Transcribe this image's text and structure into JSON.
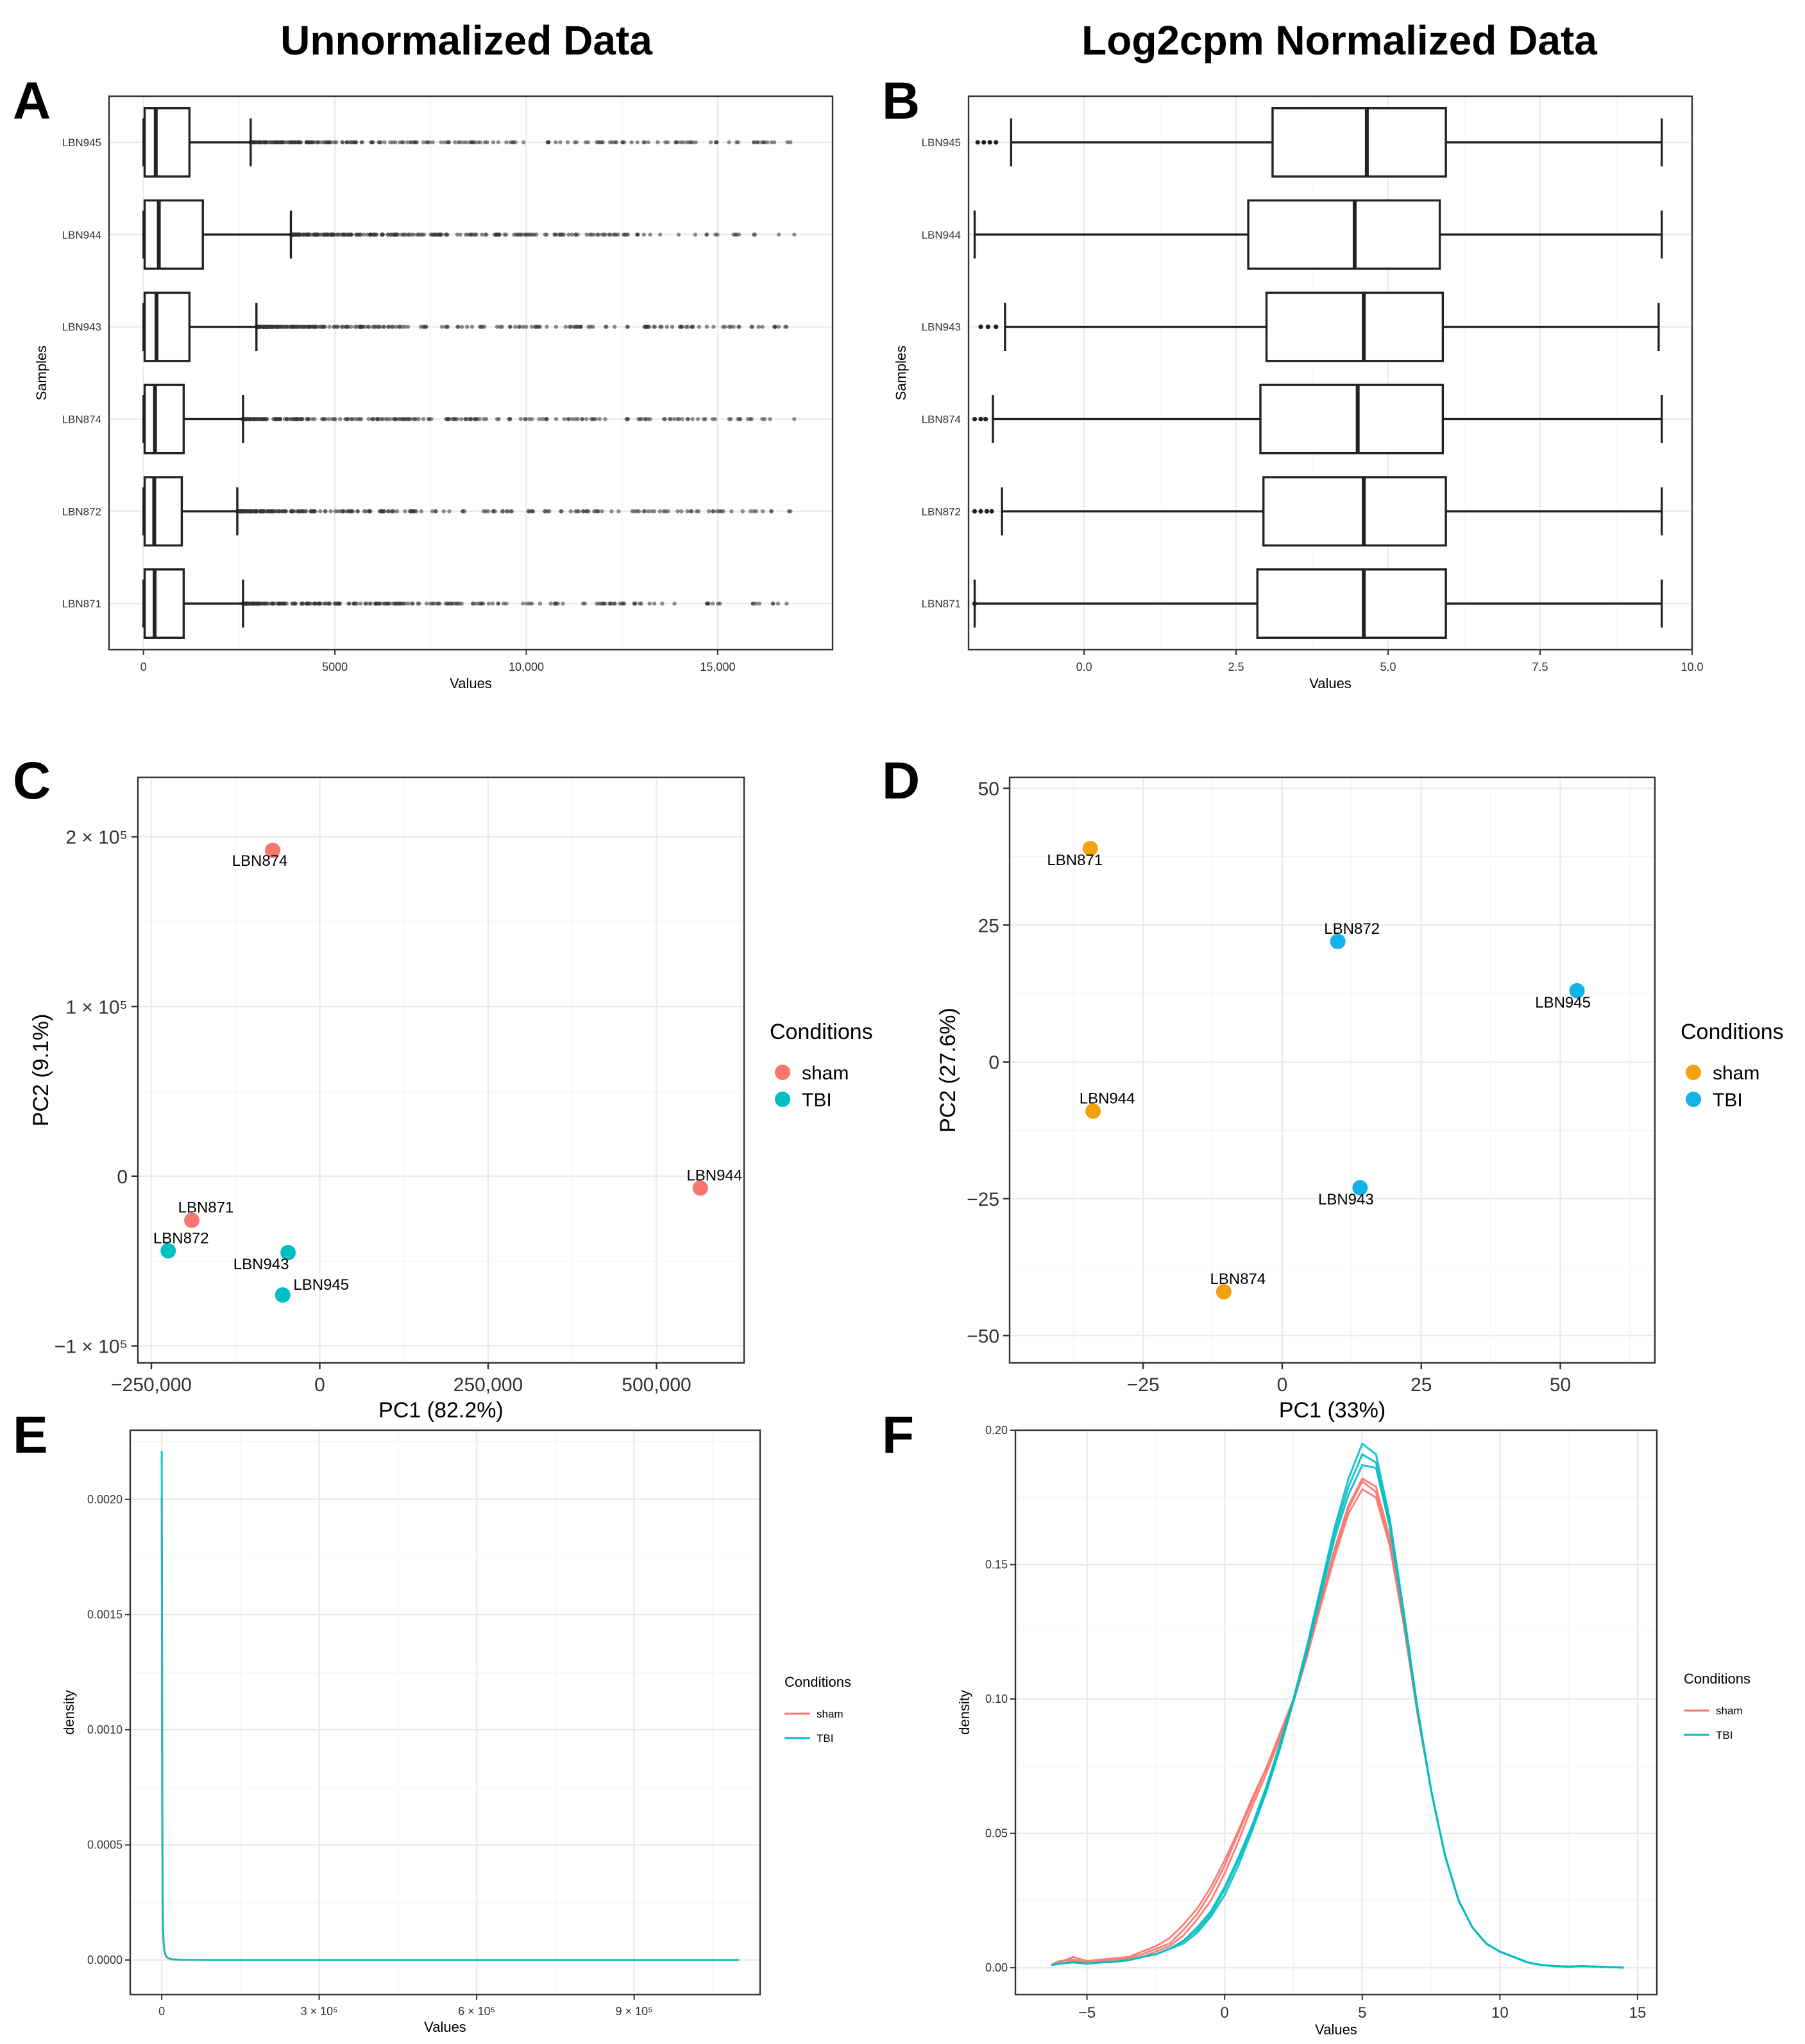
{
  "column_titles": [
    "Unnormalized Data",
    "Log2cpm Normalized Data"
  ],
  "chart_data": [
    {
      "panel": "A",
      "type": "boxplot",
      "orientation": "horizontal",
      "xlabel": "Values",
      "ylabel": "Samples",
      "xlim": [
        -900,
        18000
      ],
      "xticks": [
        0,
        5000,
        10000,
        15000
      ],
      "xtick_labels": [
        "0",
        "5000",
        "10,000",
        "15,000"
      ],
      "grid": true,
      "samples": [
        "LBN945",
        "LBN944",
        "LBN943",
        "LBN874",
        "LBN872",
        "LBN871"
      ],
      "boxes": [
        {
          "sample": "LBN945",
          "q1": 30,
          "median": 320,
          "q3": 1200,
          "whisker_low": 0,
          "whisker_high": 2800,
          "outlier_max": 16900
        },
        {
          "sample": "LBN944",
          "q1": 30,
          "median": 400,
          "q3": 1550,
          "whisker_low": 0,
          "whisker_high": 3850,
          "outlier_max": 17000
        },
        {
          "sample": "LBN943",
          "q1": 30,
          "median": 340,
          "q3": 1200,
          "whisker_low": 0,
          "whisker_high": 2950,
          "outlier_max": 16800
        },
        {
          "sample": "LBN874",
          "q1": 30,
          "median": 300,
          "q3": 1050,
          "whisker_low": 0,
          "whisker_high": 2600,
          "outlier_max": 17000
        },
        {
          "sample": "LBN872",
          "q1": 30,
          "median": 280,
          "q3": 1000,
          "whisker_low": 0,
          "whisker_high": 2450,
          "outlier_max": 16900
        },
        {
          "sample": "LBN871",
          "q1": 30,
          "median": 290,
          "q3": 1050,
          "whisker_low": 0,
          "whisker_high": 2600,
          "outlier_max": 16800
        }
      ]
    },
    {
      "panel": "B",
      "type": "boxplot",
      "orientation": "horizontal",
      "xlabel": "Values",
      "ylabel": "Samples",
      "xlim": [
        -1.9,
        10.0
      ],
      "xticks": [
        0.0,
        2.5,
        5.0,
        7.5,
        10.0
      ],
      "xtick_labels": [
        "0.0",
        "2.5",
        "5.0",
        "7.5",
        "10.0"
      ],
      "grid": true,
      "samples": [
        "LBN945",
        "LBN944",
        "LBN943",
        "LBN874",
        "LBN872",
        "LBN871"
      ],
      "boxes": [
        {
          "sample": "LBN945",
          "q1": 3.1,
          "median": 4.65,
          "q3": 5.95,
          "whisker_low": -1.2,
          "whisker_high": 9.5,
          "outliers": [
            -1.75,
            -1.65,
            -1.55,
            -1.45
          ]
        },
        {
          "sample": "LBN944",
          "q1": 2.7,
          "median": 4.45,
          "q3": 5.85,
          "whisker_low": -1.8,
          "whisker_high": 9.5,
          "outliers": []
        },
        {
          "sample": "LBN943",
          "q1": 3.0,
          "median": 4.6,
          "q3": 5.9,
          "whisker_low": -1.3,
          "whisker_high": 9.45,
          "outliers": [
            -1.7,
            -1.58,
            -1.45
          ]
        },
        {
          "sample": "LBN874",
          "q1": 2.9,
          "median": 4.5,
          "q3": 5.9,
          "whisker_low": -1.5,
          "whisker_high": 9.5,
          "outliers": [
            -1.8,
            -1.7,
            -1.62
          ]
        },
        {
          "sample": "LBN872",
          "q1": 2.95,
          "median": 4.6,
          "q3": 5.95,
          "whisker_low": -1.35,
          "whisker_high": 9.5,
          "outliers": [
            -1.8,
            -1.7,
            -1.6,
            -1.52
          ]
        },
        {
          "sample": "LBN871",
          "q1": 2.85,
          "median": 4.6,
          "q3": 5.95,
          "whisker_low": -1.8,
          "whisker_high": 9.5,
          "outliers": [
            -1.8
          ]
        }
      ]
    },
    {
      "panel": "C",
      "type": "scatter",
      "xlabel": "PC1 (82.2%)",
      "ylabel": "PC2 (9.1%)",
      "xlim": [
        -270000,
        630000
      ],
      "ylim": [
        -110000,
        235000
      ],
      "xticks": [
        -250000,
        0,
        250000,
        500000
      ],
      "xtick_labels": [
        "−250,000",
        "0",
        "250,000",
        "500,000"
      ],
      "yticks": [
        -100000,
        0,
        100000,
        200000
      ],
      "ytick_labels": [
        "−1 × 10⁵",
        "0",
        "1 × 10⁵",
        "2 × 10⁵"
      ],
      "legend": {
        "title": "Conditions",
        "entries": [
          "sham",
          "TBI"
        ],
        "colors": [
          "#F8766D",
          "#00BFC4"
        ],
        "position": "right"
      },
      "points": [
        {
          "label": "LBN874",
          "group": "sham",
          "x": -70000,
          "y": 192000
        },
        {
          "label": "LBN944",
          "group": "sham",
          "x": 565000,
          "y": -7000
        },
        {
          "label": "LBN871",
          "group": "sham",
          "x": -190000,
          "y": -26000
        },
        {
          "label": "LBN872",
          "group": "TBI",
          "x": -225000,
          "y": -44000
        },
        {
          "label": "LBN943",
          "group": "TBI",
          "x": -47000,
          "y": -45000
        },
        {
          "label": "LBN945",
          "group": "TBI",
          "x": -55000,
          "y": -70000
        }
      ]
    },
    {
      "panel": "D",
      "type": "scatter",
      "xlabel": "PC1 (33%)",
      "ylabel": "PC2 (27.6%)",
      "xlim": [
        -49,
        67
      ],
      "ylim": [
        -55,
        52
      ],
      "xticks": [
        -25,
        0,
        25,
        50
      ],
      "xtick_labels": [
        "−25",
        "0",
        "25",
        "50"
      ],
      "yticks": [
        -50,
        -25,
        0,
        25,
        50
      ],
      "ytick_labels": [
        "−50",
        "−25",
        "0",
        "25",
        "50"
      ],
      "legend": {
        "title": "Conditions",
        "entries": [
          "sham",
          "TBI"
        ],
        "colors": [
          "#F2A10F",
          "#13B2E8"
        ],
        "position": "right"
      },
      "points": [
        {
          "label": "LBN871",
          "group": "sham",
          "x": -34.5,
          "y": 39
        },
        {
          "label": "LBN944",
          "group": "sham",
          "x": -34,
          "y": -9
        },
        {
          "label": "LBN874",
          "group": "sham",
          "x": -10.5,
          "y": -42
        },
        {
          "label": "LBN872",
          "group": "TBI",
          "x": 10,
          "y": 22
        },
        {
          "label": "LBN945",
          "group": "TBI",
          "x": 53,
          "y": 13
        },
        {
          "label": "LBN943",
          "group": "TBI",
          "x": 14,
          "y": -23
        }
      ]
    },
    {
      "panel": "E",
      "type": "line",
      "xlabel": "Values",
      "ylabel": "density",
      "xlim": [
        -60000,
        1140000
      ],
      "ylim": [
        -0.00015,
        0.0023
      ],
      "xticks": [
        0,
        300000,
        600000,
        900000
      ],
      "xtick_labels": [
        "0",
        "3 × 10⁵",
        "6 × 10⁵",
        "9 × 10⁵"
      ],
      "yticks": [
        0.0,
        0.0005,
        0.001,
        0.0015,
        0.002
      ],
      "ytick_labels": [
        "0.0000",
        "0.0005",
        "0.0010",
        "0.0015",
        "0.0020"
      ],
      "legend": {
        "title": "Conditions",
        "entries": [
          "sham",
          "TBI"
        ],
        "colors": [
          "#F8766D",
          "#00BFC4"
        ],
        "position": "right"
      },
      "series": [
        {
          "name": "TBI",
          "x": [
            0,
            300,
            600,
            900,
            1200,
            1800,
            2500,
            3500,
            5000,
            8000,
            12000,
            20000,
            40000,
            100000,
            300000,
            600000,
            900000,
            1100000
          ],
          "values": [
            0.00221,
            0.00185,
            0.0014,
            0.00095,
            0.00062,
            0.0003,
            0.00015,
            8e-05,
            4e-05,
            1.8e-05,
            8e-06,
            3e-06,
            1e-06,
            0,
            0,
            0,
            0,
            0
          ]
        },
        {
          "name": "sham",
          "x": [
            0,
            300,
            600,
            900,
            1200,
            1800,
            2500,
            3500,
            5000,
            8000,
            12000,
            20000,
            40000,
            100000,
            300000,
            600000,
            900000,
            1100000
          ],
          "values": [
            0.00201,
            0.0017,
            0.0013,
            0.0009,
            0.0006,
            0.00029,
            0.00014,
            8e-05,
            4e-05,
            1.8e-05,
            8e-06,
            3e-06,
            1e-06,
            0,
            0,
            0,
            0,
            0
          ]
        }
      ]
    },
    {
      "panel": "F",
      "type": "line",
      "xlabel": "Values",
      "ylabel": "density",
      "xlim": [
        -7.6,
        15.7
      ],
      "ylim": [
        -0.01,
        0.2
      ],
      "xticks": [
        -5,
        0,
        5,
        10,
        15
      ],
      "xtick_labels": [
        "−5",
        "0",
        "5",
        "10",
        "15"
      ],
      "yticks": [
        0.0,
        0.05,
        0.1,
        0.15,
        0.2
      ],
      "ytick_labels": [
        "0.00",
        "0.05",
        "0.10",
        "0.15",
        "0.20"
      ],
      "legend": {
        "title": "Conditions",
        "entries": [
          "sham",
          "TBI"
        ],
        "colors": [
          "#F8766D",
          "#00BFC4"
        ],
        "position": "right"
      },
      "x": [
        -6.3,
        -6.0,
        -5.5,
        -5.0,
        -4.5,
        -4.0,
        -3.5,
        -3.0,
        -2.5,
        -2.0,
        -1.5,
        -1.0,
        -0.5,
        0.0,
        0.5,
        1.0,
        1.5,
        2.0,
        2.5,
        3.0,
        3.5,
        4.0,
        4.5,
        5.0,
        5.5,
        6.0,
        6.5,
        7.0,
        7.5,
        8.0,
        8.5,
        9.0,
        9.5,
        10.0,
        10.5,
        11.0,
        11.5,
        12.0,
        12.5,
        13.0,
        13.5,
        14.0,
        14.5
      ],
      "series": [
        {
          "name": "sham",
          "values": [
            0.001,
            0.002,
            0.004,
            0.0025,
            0.003,
            0.0035,
            0.004,
            0.006,
            0.008,
            0.011,
            0.016,
            0.022,
            0.03,
            0.04,
            0.051,
            0.063,
            0.074,
            0.086,
            0.099,
            0.116,
            0.136,
            0.155,
            0.171,
            0.181,
            0.177,
            0.158,
            0.128,
            0.095,
            0.066,
            0.042,
            0.025,
            0.015,
            0.009,
            0.006,
            0.004,
            0.002,
            0.001,
            0.0006,
            0.0004,
            0.0006,
            0.0004,
            0.0002,
            0.0001
          ]
        },
        {
          "name": "sham",
          "values": [
            0.001,
            0.0025,
            0.003,
            0.002,
            0.0025,
            0.003,
            0.0035,
            0.005,
            0.007,
            0.009,
            0.014,
            0.02,
            0.028,
            0.038,
            0.05,
            0.062,
            0.074,
            0.087,
            0.1,
            0.117,
            0.137,
            0.156,
            0.172,
            0.182,
            0.179,
            0.16,
            0.129,
            0.096,
            0.066,
            0.042,
            0.025,
            0.015,
            0.009,
            0.006,
            0.004,
            0.002,
            0.001,
            0.0006,
            0.0004,
            0.0006,
            0.0004,
            0.0002,
            0.0001
          ]
        },
        {
          "name": "sham",
          "values": [
            0.001,
            0.0015,
            0.0025,
            0.0015,
            0.002,
            0.0025,
            0.003,
            0.004,
            0.006,
            0.008,
            0.012,
            0.018,
            0.025,
            0.035,
            0.047,
            0.06,
            0.072,
            0.085,
            0.099,
            0.116,
            0.135,
            0.153,
            0.169,
            0.178,
            0.175,
            0.157,
            0.128,
            0.095,
            0.066,
            0.042,
            0.025,
            0.015,
            0.009,
            0.006,
            0.004,
            0.002,
            0.001,
            0.0006,
            0.0004,
            0.0006,
            0.0004,
            0.0002,
            0.0001
          ]
        },
        {
          "name": "TBI",
          "values": [
            0.001,
            0.0015,
            0.002,
            0.0015,
            0.002,
            0.0022,
            0.0028,
            0.004,
            0.005,
            0.007,
            0.01,
            0.015,
            0.021,
            0.03,
            0.041,
            0.053,
            0.067,
            0.083,
            0.1,
            0.12,
            0.142,
            0.164,
            0.182,
            0.195,
            0.191,
            0.167,
            0.133,
            0.097,
            0.066,
            0.042,
            0.025,
            0.015,
            0.009,
            0.006,
            0.004,
            0.002,
            0.001,
            0.0006,
            0.0004,
            0.0006,
            0.0004,
            0.0002,
            0.0001
          ]
        },
        {
          "name": "TBI",
          "values": [
            0.001,
            0.0015,
            0.002,
            0.0015,
            0.002,
            0.0022,
            0.0028,
            0.004,
            0.005,
            0.007,
            0.01,
            0.014,
            0.02,
            0.029,
            0.04,
            0.052,
            0.066,
            0.082,
            0.099,
            0.119,
            0.141,
            0.162,
            0.179,
            0.191,
            0.188,
            0.165,
            0.132,
            0.097,
            0.066,
            0.042,
            0.025,
            0.015,
            0.009,
            0.006,
            0.004,
            0.002,
            0.001,
            0.0006,
            0.0004,
            0.0006,
            0.0004,
            0.0002,
            0.0001
          ]
        },
        {
          "name": "TBI",
          "values": [
            0.001,
            0.0015,
            0.002,
            0.0015,
            0.002,
            0.0022,
            0.0028,
            0.004,
            0.005,
            0.007,
            0.009,
            0.013,
            0.019,
            0.027,
            0.038,
            0.051,
            0.065,
            0.081,
            0.099,
            0.118,
            0.139,
            0.16,
            0.176,
            0.187,
            0.186,
            0.164,
            0.131,
            0.096,
            0.066,
            0.042,
            0.025,
            0.015,
            0.009,
            0.006,
            0.004,
            0.002,
            0.001,
            0.0006,
            0.0004,
            0.0006,
            0.0004,
            0.0002,
            0.0001
          ]
        }
      ]
    }
  ]
}
